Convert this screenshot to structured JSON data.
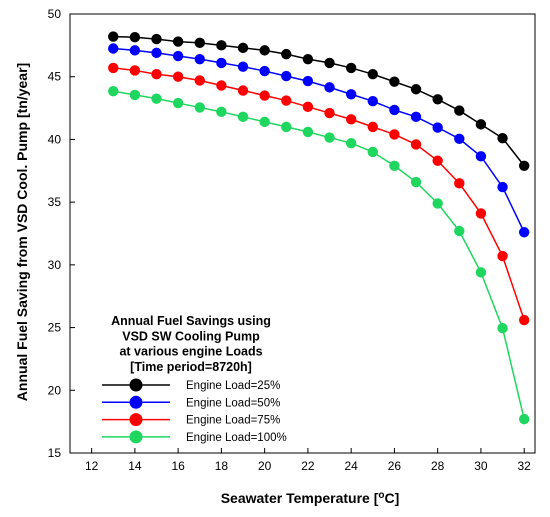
{
  "chart_data": {
    "type": "line",
    "xlabel": "Seawater Temperature [",
    "xlabel_unit_sup": "o",
    "xlabel_unit": "C]",
    "ylabel": "Annual Fuel Saving from VSD Cool. Pump [tn/year]",
    "xlim": [
      11,
      32.5
    ],
    "ylim": [
      15,
      50
    ],
    "x_ticks": [
      12,
      14,
      16,
      18,
      20,
      22,
      24,
      26,
      28,
      30,
      32
    ],
    "y_ticks": [
      15,
      20,
      25,
      30,
      35,
      40,
      45,
      50
    ],
    "x": [
      13,
      14,
      15,
      16,
      17,
      18,
      19,
      20,
      21,
      22,
      23,
      24,
      25,
      26,
      27,
      28,
      29,
      30,
      31,
      32
    ],
    "legend": {
      "title_lines": [
        "Annual Fuel Savings using",
        "VSD SW Cooling Pump",
        "at various engine Loads",
        "[Time period=8720h]"
      ],
      "placement": "bottom-left"
    },
    "series": [
      {
        "name": "Engine Load=25%",
        "color": "#000000",
        "values": [
          48.2,
          48.15,
          48.0,
          47.8,
          47.7,
          47.5,
          47.3,
          47.1,
          46.8,
          46.4,
          46.1,
          45.7,
          45.2,
          44.6,
          44.0,
          43.2,
          42.3,
          41.2,
          40.1,
          37.9
        ]
      },
      {
        "name": "Engine Load=50%",
        "color": "#0000ff",
        "values": [
          47.25,
          47.1,
          46.9,
          46.65,
          46.4,
          46.1,
          45.8,
          45.45,
          45.05,
          44.65,
          44.15,
          43.6,
          43.05,
          42.35,
          41.8,
          40.95,
          40.05,
          38.65,
          36.2,
          32.6
        ]
      },
      {
        "name": "Engine Load=75%",
        "color": "#ff0000",
        "values": [
          45.7,
          45.5,
          45.2,
          45.0,
          44.7,
          44.3,
          43.9,
          43.5,
          43.1,
          42.6,
          42.1,
          41.6,
          41.0,
          40.4,
          39.6,
          38.3,
          36.5,
          34.1,
          30.7,
          25.6
        ]
      },
      {
        "name": "Engine Load=100%",
        "color": "#1fd65f",
        "values": [
          43.85,
          43.55,
          43.25,
          42.9,
          42.55,
          42.2,
          41.8,
          41.4,
          41.0,
          40.6,
          40.15,
          39.7,
          39.0,
          37.9,
          36.6,
          34.9,
          32.7,
          29.4,
          24.95,
          17.7
        ]
      }
    ]
  }
}
